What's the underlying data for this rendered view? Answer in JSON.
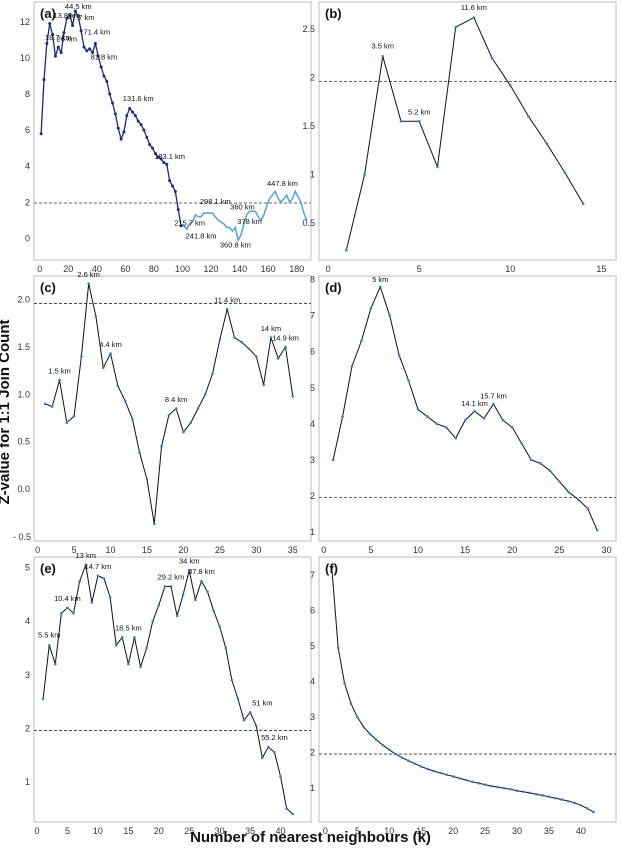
{
  "figure": {
    "ylabel": "Z-value for 1:1 Join Count",
    "xlabel": "Number of nearest neighbours (k)"
  },
  "chart_data": [
    {
      "id": "a",
      "panel_label": "(a)",
      "type": "line",
      "xlim": [
        -4,
        190
      ],
      "ylim": [
        -1.2,
        13.1
      ],
      "xticks": [
        0,
        20,
        40,
        60,
        80,
        100,
        120,
        140,
        160,
        180
      ],
      "yticks": [
        0,
        2,
        4,
        6,
        8,
        10,
        12
      ],
      "reference_line": 1.96,
      "series_color": "#1f2a7a",
      "tail_color": "#5aa7d8",
      "tail_start_x": 100,
      "x": [
        1,
        3,
        5,
        7,
        9,
        11,
        13,
        15,
        17,
        19,
        21,
        23,
        25,
        27,
        29,
        31,
        33,
        35,
        37,
        39,
        41,
        43,
        45,
        47,
        49,
        51,
        53,
        55,
        57,
        59,
        61,
        63,
        65,
        67,
        69,
        71,
        73,
        75,
        77,
        79,
        81,
        83,
        85,
        87,
        89,
        91,
        93,
        95,
        97,
        99,
        101,
        103,
        105,
        107,
        109,
        111,
        113,
        115,
        117,
        119,
        121,
        123,
        125,
        127,
        129,
        131,
        133,
        135,
        137,
        139,
        141,
        143,
        145,
        147,
        149,
        151,
        153,
        155,
        157,
        159,
        161,
        163,
        165,
        167,
        169,
        171,
        173,
        175,
        177,
        179,
        181,
        183,
        185,
        187
      ],
      "y": [
        5.8,
        8.8,
        10.8,
        11.9,
        11.3,
        10.1,
        10.6,
        10.3,
        11.4,
        12.2,
        12.4,
        11.8,
        12.6,
        12.3,
        11.5,
        10.6,
        10.4,
        10.5,
        10.3,
        10.8,
        10.1,
        9.5,
        9.0,
        8.7,
        8.0,
        7.5,
        6.9,
        6.1,
        5.5,
        5.9,
        6.8,
        7.2,
        7.0,
        6.8,
        6.5,
        6.3,
        6.0,
        5.6,
        5.2,
        5.0,
        4.7,
        4.5,
        4.4,
        4.2,
        4.1,
        3.2,
        2.9,
        2.6,
        1.6,
        0.7,
        0.7,
        0.5,
        0.8,
        0.9,
        1.3,
        1.2,
        1.2,
        1.4,
        1.4,
        1.4,
        1.4,
        1.2,
        1.0,
        0.9,
        0.8,
        0.6,
        0.6,
        0.4,
        0.6,
        -0.1,
        0.2,
        0.8,
        1.3,
        1.5,
        1.5,
        1.5,
        1.2,
        1.0,
        1.3,
        1.8,
        2.2,
        2.4,
        2.6,
        2.2,
        2.0,
        2.2,
        2.4,
        2.0,
        2.2,
        2.6,
        2.3,
        2.0,
        1.4,
        1.0
      ],
      "annotations": [
        {
          "x": 27,
          "y": 12.7,
          "text": "44.5 km"
        },
        {
          "x": 19,
          "y": 12.2,
          "text": "13.8 km"
        },
        {
          "x": 29,
          "y": 12.1,
          "text": "47.7 km"
        },
        {
          "x": 13,
          "y": 11.0,
          "text": "18.7 km"
        },
        {
          "x": 19,
          "y": 10.9,
          "text": "26 km"
        },
        {
          "x": 40,
          "y": 11.3,
          "text": "71.4 km"
        },
        {
          "x": 45,
          "y": 9.9,
          "text": "81.8 km"
        },
        {
          "x": 69,
          "y": 7.6,
          "text": "131.6 km"
        },
        {
          "x": 91,
          "y": 4.4,
          "text": "183.1 km"
        },
        {
          "x": 123,
          "y": 1.9,
          "text": "298.1 km"
        },
        {
          "x": 170,
          "y": 2.9,
          "text": "447.8 km"
        },
        {
          "x": 105,
          "y": 0.7,
          "text": "215.7 km"
        },
        {
          "x": 113,
          "y": 0.0,
          "text": "241.8 km"
        },
        {
          "x": 142,
          "y": 1.6,
          "text": "360 km"
        },
        {
          "x": 147,
          "y": 0.8,
          "text": "378 km"
        },
        {
          "x": 137,
          "y": -0.5,
          "text": "360.8 km"
        }
      ]
    },
    {
      "id": "b",
      "panel_label": "(b)",
      "type": "line",
      "xlim": [
        -0.5,
        15.8
      ],
      "ylim": [
        0.12,
        2.78
      ],
      "xticks": [
        0,
        5,
        10,
        15
      ],
      "yticks": [
        0.5,
        1.0,
        1.5,
        2.0,
        2.5
      ],
      "reference_line": 1.96,
      "series_color": "#111111",
      "x": [
        1,
        2,
        3,
        4,
        5,
        6,
        7,
        8,
        9,
        10,
        11,
        12,
        13,
        14
      ],
      "y": [
        0.22,
        1.0,
        2.22,
        1.55,
        1.55,
        1.08,
        2.52,
        2.62,
        2.2,
        1.92,
        1.6,
        1.32,
        1.02,
        0.7
      ],
      "annotations": [
        {
          "x": 3,
          "y": 2.3,
          "text": "3.5 km"
        },
        {
          "x": 5,
          "y": 1.62,
          "text": "5.2 km"
        },
        {
          "x": 8,
          "y": 2.7,
          "text": "11.6 km"
        }
      ]
    },
    {
      "id": "c",
      "panel_label": "(c)",
      "type": "line",
      "xlim": [
        -0.5,
        37.5
      ],
      "ylim": [
        -0.55,
        2.25
      ],
      "xticks": [
        0,
        5,
        10,
        15,
        20,
        25,
        30,
        35
      ],
      "yticks": [
        0.0,
        0.5,
        1.0,
        1.5,
        2.0
      ],
      "ytick_labels": [
        "0.0",
        "0.5",
        "1.0",
        "1.5",
        "2.0"
      ],
      "extra_ytick_label": "- 0.5",
      "reference_line": 1.96,
      "series_color": "#111111",
      "x": [
        1,
        2,
        3,
        4,
        5,
        6,
        7,
        8,
        9,
        10,
        11,
        12,
        13,
        14,
        15,
        16,
        17,
        18,
        19,
        20,
        21,
        22,
        23,
        24,
        25,
        26,
        27,
        28,
        29,
        30,
        31,
        32,
        33,
        34,
        35
      ],
      "y": [
        0.9,
        0.87,
        1.15,
        0.7,
        0.77,
        1.4,
        2.17,
        1.82,
        1.28,
        1.43,
        1.09,
        0.93,
        0.74,
        0.38,
        0.1,
        -0.37,
        0.45,
        0.78,
        0.85,
        0.6,
        0.7,
        0.85,
        1.0,
        1.22,
        1.58,
        1.9,
        1.6,
        1.55,
        1.48,
        1.4,
        1.1,
        1.6,
        1.38,
        1.5,
        0.98
      ],
      "annotations": [
        {
          "x": 3,
          "y": 1.22,
          "text": "1.5 km"
        },
        {
          "x": 7,
          "y": 2.24,
          "text": "2.6 km"
        },
        {
          "x": 10,
          "y": 1.5,
          "text": "4.4 km"
        },
        {
          "x": 19,
          "y": 0.92,
          "text": "8.4 km"
        },
        {
          "x": 26,
          "y": 1.97,
          "text": "11.4 km"
        },
        {
          "x": 32,
          "y": 1.67,
          "text": "14 km"
        },
        {
          "x": 34,
          "y": 1.57,
          "text": "14.9 km"
        }
      ]
    },
    {
      "id": "d",
      "panel_label": "(d)",
      "type": "line",
      "xlim": [
        -0.5,
        31.0
      ],
      "ylim": [
        0.75,
        8.1
      ],
      "xticks": [
        0,
        5,
        10,
        15,
        20,
        25,
        30
      ],
      "yticks": [
        1,
        2,
        3,
        4,
        5,
        6,
        7,
        8
      ],
      "reference_line": 1.96,
      "series_color": "#111111",
      "x": [
        1,
        2,
        3,
        4,
        5,
        6,
        7,
        8,
        9,
        10,
        11,
        12,
        13,
        14,
        15,
        16,
        17,
        18,
        19,
        20,
        21,
        22,
        23,
        24,
        25,
        26,
        27,
        28,
        29
      ],
      "y": [
        3.0,
        4.2,
        5.6,
        6.3,
        7.2,
        7.8,
        7.0,
        5.9,
        5.2,
        4.4,
        4.2,
        4.0,
        3.9,
        3.6,
        4.1,
        4.35,
        4.15,
        4.55,
        4.1,
        3.9,
        3.45,
        3.0,
        2.9,
        2.7,
        2.4,
        2.1,
        1.9,
        1.65,
        1.05
      ],
      "annotations": [
        {
          "x": 6,
          "y": 7.93,
          "text": "5 km"
        },
        {
          "x": 16,
          "y": 4.5,
          "text": "14.1 km"
        },
        {
          "x": 18,
          "y": 4.7,
          "text": "15.7 km"
        }
      ]
    },
    {
      "id": "e",
      "panel_label": "(e)",
      "type": "line",
      "xlim": [
        -0.5,
        45.0
      ],
      "ylim": [
        0.25,
        5.2
      ],
      "xticks": [
        0,
        5,
        10,
        15,
        20,
        25,
        30,
        35,
        40
      ],
      "yticks": [
        1,
        2,
        3,
        4,
        5
      ],
      "reference_line": 1.96,
      "series_color": "#111111",
      "x": [
        1,
        2,
        3,
        4,
        5,
        6,
        7,
        8,
        9,
        10,
        11,
        12,
        13,
        14,
        15,
        16,
        17,
        18,
        19,
        20,
        21,
        22,
        23,
        24,
        25,
        26,
        27,
        28,
        29,
        30,
        31,
        32,
        33,
        34,
        35,
        36,
        37,
        38,
        39,
        40,
        41,
        42
      ],
      "y": [
        2.55,
        3.55,
        3.2,
        4.15,
        4.25,
        4.15,
        4.75,
        5.05,
        4.35,
        4.85,
        4.8,
        4.45,
        3.55,
        3.7,
        3.2,
        3.7,
        3.15,
        3.5,
        4.0,
        4.3,
        4.65,
        4.65,
        4.1,
        4.5,
        4.95,
        4.4,
        4.75,
        4.55,
        4.2,
        3.9,
        3.5,
        2.9,
        2.55,
        2.15,
        2.3,
        2.05,
        1.45,
        1.65,
        1.55,
        1.1,
        0.5,
        0.4
      ],
      "annotations": [
        {
          "x": 2,
          "y": 3.7,
          "text": "5.5 km"
        },
        {
          "x": 5,
          "y": 4.38,
          "text": "10.4 km"
        },
        {
          "x": 8,
          "y": 5.18,
          "text": "13 km"
        },
        {
          "x": 10,
          "y": 4.98,
          "text": "14.7 km"
        },
        {
          "x": 15,
          "y": 3.83,
          "text": "18.5 km"
        },
        {
          "x": 22,
          "y": 4.78,
          "text": "29.2 km"
        },
        {
          "x": 25,
          "y": 5.08,
          "text": "34 km"
        },
        {
          "x": 27,
          "y": 4.88,
          "text": "37.8 km"
        },
        {
          "x": 37,
          "y": 2.43,
          "text": "51 km"
        },
        {
          "x": 39,
          "y": 1.78,
          "text": "55.2 km"
        }
      ]
    },
    {
      "id": "f",
      "panel_label": "(f)",
      "type": "line",
      "xlim": [
        -1.0,
        45.5
      ],
      "ylim": [
        0.05,
        7.5
      ],
      "xticks": [
        0,
        5,
        10,
        15,
        20,
        25,
        30,
        35,
        40
      ],
      "yticks": [
        1,
        2,
        3,
        4,
        5,
        6,
        7
      ],
      "reference_line": 1.96,
      "series_color": "#111111",
      "x": [
        1,
        2,
        3,
        4,
        5,
        6,
        7,
        8,
        9,
        10,
        11,
        12,
        13,
        14,
        15,
        16,
        17,
        18,
        19,
        20,
        21,
        22,
        23,
        24,
        25,
        26,
        27,
        28,
        29,
        30,
        31,
        32,
        33,
        34,
        35,
        36,
        37,
        38,
        39,
        40,
        41,
        42
      ],
      "y": [
        7.2,
        4.95,
        3.95,
        3.38,
        3.0,
        2.72,
        2.52,
        2.36,
        2.21,
        2.08,
        1.96,
        1.86,
        1.77,
        1.69,
        1.61,
        1.54,
        1.48,
        1.43,
        1.38,
        1.33,
        1.28,
        1.23,
        1.18,
        1.14,
        1.1,
        1.06,
        1.03,
        1.0,
        0.97,
        0.93,
        0.9,
        0.87,
        0.83,
        0.8,
        0.76,
        0.72,
        0.68,
        0.64,
        0.59,
        0.52,
        0.43,
        0.33
      ],
      "annotations": []
    }
  ]
}
